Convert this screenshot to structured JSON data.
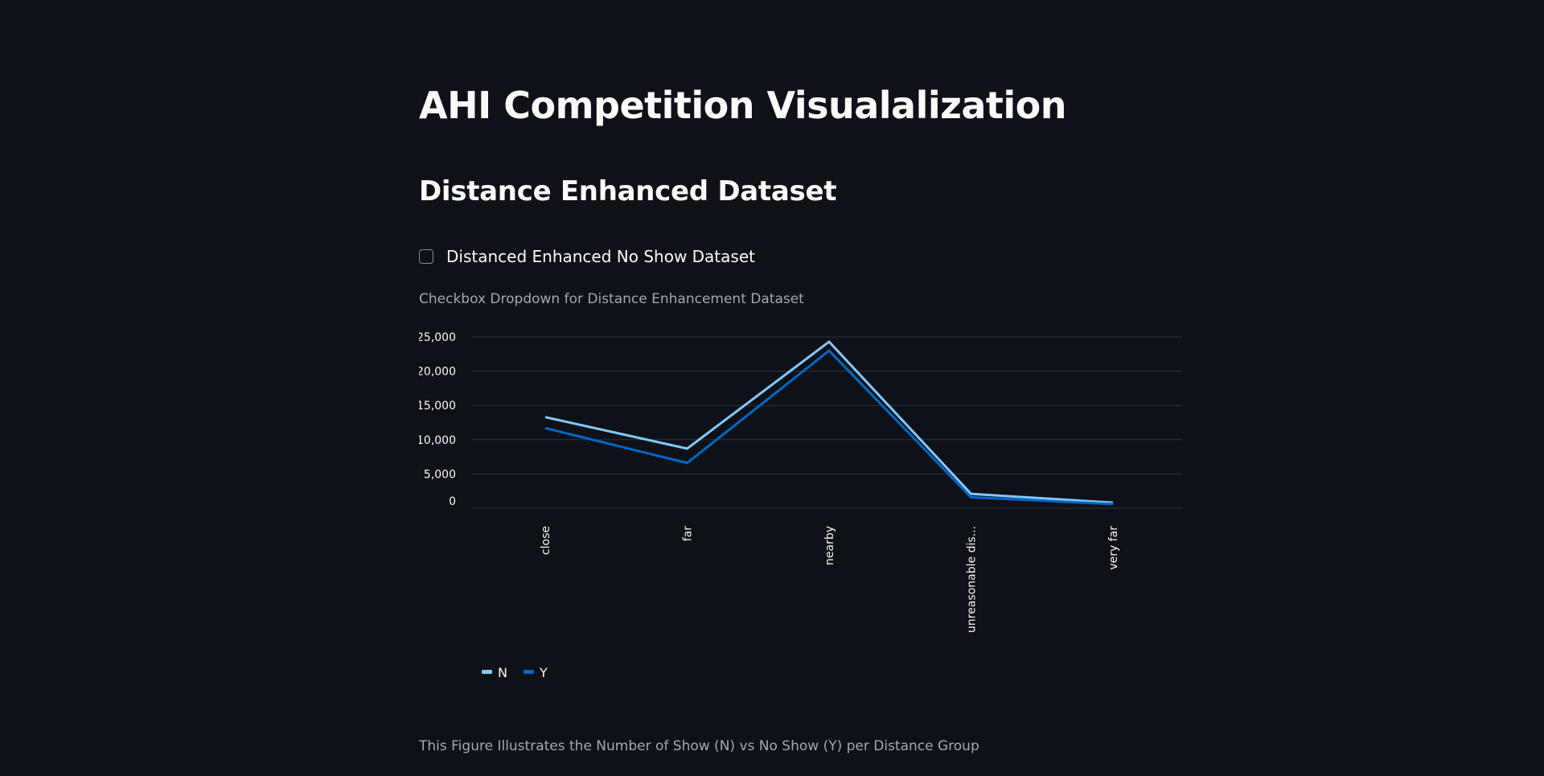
{
  "page": {
    "title": "AHI Competition Visualalization",
    "subheader": "Distance Enhanced Dataset",
    "checkbox_label": "Distanced Enhanced No Show Dataset",
    "checkbox_checked": false,
    "chart_caption": "Checkbox Dropdown for Distance Enhancement Dataset",
    "figure_caption": "This Figure Illustrates the Number of Show (N) vs No Show (Y) per Distance Group"
  },
  "colors": {
    "background": "#0e1117",
    "series_n": "#83c9ff",
    "series_y": "#0068c9",
    "gridline": "#31333f"
  },
  "chart_data": {
    "type": "line",
    "categories": [
      "close",
      "far",
      "nearby",
      "unreasonable dis...",
      "very far"
    ],
    "series": [
      {
        "name": "N",
        "values": [
          13300,
          8700,
          24300,
          2100,
          800
        ]
      },
      {
        "name": "Y",
        "values": [
          11700,
          6600,
          23000,
          1600,
          600
        ]
      }
    ],
    "y_ticks": [
      "25,000",
      "20,000",
      "15,000",
      "10,000",
      "5,000",
      "0"
    ],
    "ylim": [
      0,
      25000
    ],
    "legend_position": "bottom-left",
    "grid": true
  }
}
